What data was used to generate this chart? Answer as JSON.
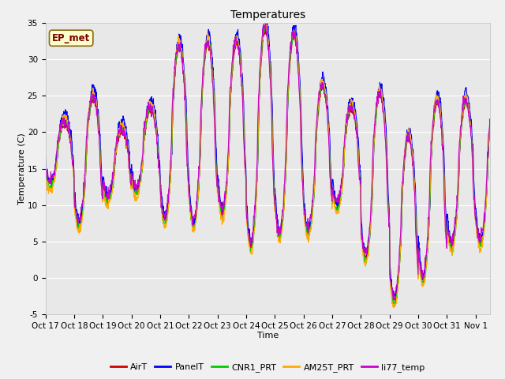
{
  "title": "Temperatures",
  "xlabel": "Time",
  "ylabel": "Temperature (C)",
  "ylim": [
    -5,
    35
  ],
  "fig_bg": "#f0f0f0",
  "plot_bg": "#e8e8e8",
  "annotation_text": "EP_met",
  "annotation_bg": "#ffffcc",
  "annotation_border": "#8b6914",
  "legend_entries": [
    "AirT",
    "PanelT",
    "CNR1_PRT",
    "AM25T_PRT",
    "li77_temp"
  ],
  "line_colors": [
    "#cc0000",
    "#0000ff",
    "#00cc00",
    "#ffaa00",
    "#cc00cc"
  ],
  "tick_labels": [
    "Oct 17",
    "Oct 18",
    "Oct 19",
    "Oct 20",
    "Oct 21",
    "Oct 22",
    "Oct 23",
    "Oct 24",
    "Oct 25",
    "Oct 26",
    "Oct 27",
    "Oct 28",
    "Oct 29",
    "Oct 30",
    "Oct 31",
    "Nov 1"
  ],
  "yticks": [
    -5,
    0,
    5,
    10,
    15,
    20,
    25,
    30,
    35
  ],
  "title_fontsize": 10,
  "axis_fontsize": 8,
  "tick_fontsize": 7.5,
  "day_maxima": [
    21,
    24.5,
    20,
    23,
    31.5,
    32,
    32,
    34,
    33,
    26,
    23,
    25,
    19,
    24,
    24,
    24
  ],
  "day_minima": [
    13,
    7.5,
    11,
    12,
    8,
    7.5,
    9,
    4.5,
    6,
    6.5,
    10,
    3,
    -3,
    0,
    4.5,
    5
  ]
}
